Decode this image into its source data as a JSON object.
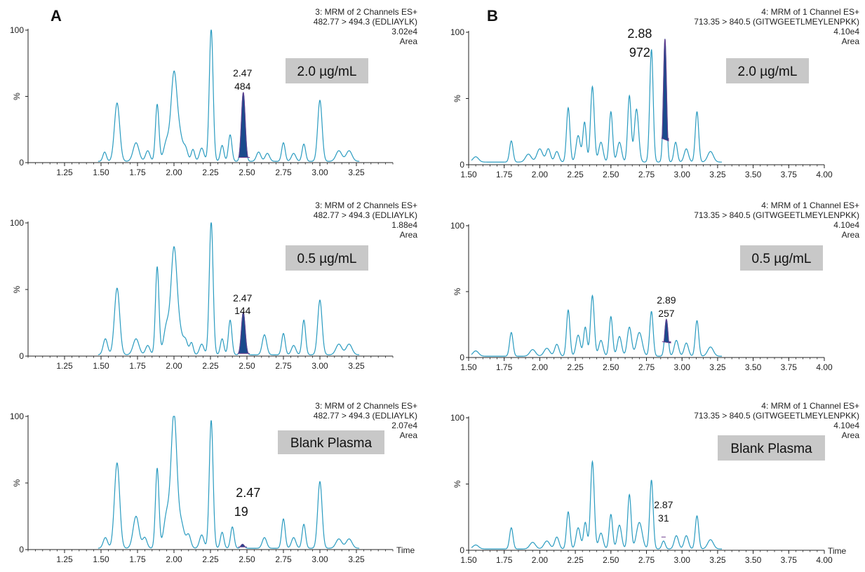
{
  "panel_letters": [
    "A",
    "B"
  ],
  "time_label": "Time",
  "chart_data": [
    {
      "type": "line",
      "panel": "A",
      "label": "2.0 µg/mL",
      "info": [
        "3: MRM of 2 Channels ES+",
        "482.77 > 494.3 (EDLIAYLK)",
        "3.02e4",
        "Area"
      ],
      "xlim": [
        1.0,
        3.5
      ],
      "xticks": [
        "1.25",
        "1.50",
        "1.75",
        "2.00",
        "2.25",
        "2.50",
        "2.75",
        "3.00",
        "3.25"
      ],
      "yticks": [
        "0",
        "%",
        "100"
      ],
      "ylim": [
        0,
        100
      ],
      "baseline": 1,
      "peaks": [
        [
          1.525,
          7,
          0.012
        ],
        [
          1.61,
          44,
          0.018
        ],
        [
          1.74,
          14,
          0.02
        ],
        [
          1.82,
          8,
          0.015
        ],
        [
          1.885,
          43,
          0.012
        ],
        [
          1.95,
          15,
          0.02
        ],
        [
          2.0,
          65,
          0.02
        ],
        [
          2.04,
          18,
          0.02
        ],
        [
          2.08,
          9,
          0.015
        ],
        [
          2.13,
          9,
          0.012
        ],
        [
          2.19,
          10,
          0.015
        ],
        [
          2.255,
          100,
          0.013
        ],
        [
          2.33,
          12,
          0.012
        ],
        [
          2.385,
          20,
          0.012
        ],
        [
          2.475,
          52,
          0.013
        ],
        [
          2.58,
          7,
          0.015
        ],
        [
          2.64,
          6,
          0.015
        ],
        [
          2.75,
          14,
          0.012
        ],
        [
          2.82,
          6,
          0.015
        ],
        [
          2.89,
          13,
          0.012
        ],
        [
          3.0,
          46,
          0.015
        ],
        [
          3.13,
          8,
          0.02
        ],
        [
          3.2,
          8,
          0.02
        ]
      ],
      "x_start": 1.48,
      "x_end": 3.27,
      "shaded": {
        "start": 2.44,
        "end": 2.52,
        "base_start": 4,
        "base_end": 4
      },
      "annotation": {
        "rt": "2.47",
        "area": "484",
        "x": 2.47
      },
      "show_time": false
    },
    {
      "type": "line",
      "panel": "A",
      "label": "0.5 µg/mL",
      "info": [
        "3: MRM of 2 Channels ES+",
        "482.77 > 494.3 (EDLIAYLK)",
        "1.88e4",
        "Area"
      ],
      "xlim": [
        1.0,
        3.5
      ],
      "xticks": [
        "1.25",
        "1.50",
        "1.75",
        "2.00",
        "2.25",
        "2.50",
        "2.75",
        "3.00",
        "3.25"
      ],
      "yticks": [
        "0",
        "%",
        "100"
      ],
      "ylim": [
        0,
        100
      ],
      "baseline": 1,
      "peaks": [
        [
          1.53,
          12,
          0.015
        ],
        [
          1.61,
          50,
          0.018
        ],
        [
          1.74,
          12,
          0.02
        ],
        [
          1.82,
          7,
          0.015
        ],
        [
          1.885,
          66,
          0.012
        ],
        [
          1.95,
          22,
          0.02
        ],
        [
          2.0,
          78,
          0.02
        ],
        [
          2.04,
          16,
          0.02
        ],
        [
          2.08,
          10,
          0.015
        ],
        [
          2.12,
          9,
          0.012
        ],
        [
          2.19,
          8,
          0.015
        ],
        [
          2.255,
          100,
          0.013
        ],
        [
          2.33,
          12,
          0.012
        ],
        [
          2.385,
          26,
          0.012
        ],
        [
          2.475,
          32,
          0.013
        ],
        [
          2.62,
          15,
          0.015
        ],
        [
          2.75,
          16,
          0.012
        ],
        [
          2.82,
          7,
          0.015
        ],
        [
          2.89,
          26,
          0.012
        ],
        [
          3.0,
          41,
          0.015
        ],
        [
          3.13,
          8,
          0.02
        ],
        [
          3.2,
          8,
          0.02
        ]
      ],
      "x_start": 1.48,
      "x_end": 3.27,
      "shaded": {
        "start": 2.44,
        "end": 2.52,
        "base_start": 2,
        "base_end": 2
      },
      "annotation": {
        "rt": "2.47",
        "area": "144",
        "x": 2.47
      },
      "show_time": false
    },
    {
      "type": "line",
      "panel": "A",
      "label": "Blank Plasma",
      "info": [
        "3: MRM of 2 Channels ES+",
        "482.77 > 494.3 (EDLIAYLK)",
        "2.07e4",
        "Area"
      ],
      "xlim": [
        1.0,
        3.5
      ],
      "xticks": [
        "1.25",
        "1.50",
        "1.75",
        "2.00",
        "2.25",
        "2.50",
        "2.75",
        "3.00",
        "3.25"
      ],
      "yticks": [
        "0",
        "%",
        "100"
      ],
      "ylim": [
        0,
        100
      ],
      "baseline": 1,
      "peaks": [
        [
          1.53,
          8,
          0.015
        ],
        [
          1.61,
          64,
          0.018
        ],
        [
          1.74,
          24,
          0.02
        ],
        [
          1.8,
          8,
          0.015
        ],
        [
          1.885,
          60,
          0.012
        ],
        [
          1.95,
          25,
          0.02
        ],
        [
          2.0,
          100,
          0.02
        ],
        [
          2.05,
          18,
          0.02
        ],
        [
          2.1,
          10,
          0.015
        ],
        [
          2.19,
          10,
          0.015
        ],
        [
          2.255,
          96,
          0.013
        ],
        [
          2.33,
          12,
          0.012
        ],
        [
          2.4,
          16,
          0.012
        ],
        [
          2.47,
          3,
          0.012
        ],
        [
          2.62,
          8,
          0.015
        ],
        [
          2.75,
          22,
          0.012
        ],
        [
          2.82,
          8,
          0.015
        ],
        [
          2.89,
          18,
          0.012
        ],
        [
          3.0,
          50,
          0.015
        ],
        [
          3.13,
          7,
          0.02
        ],
        [
          3.2,
          7,
          0.02
        ]
      ],
      "x_start": 1.48,
      "x_end": 3.27,
      "shaded": {
        "start": 2.44,
        "end": 2.5,
        "base_start": 2,
        "base_end": 2
      },
      "annotation": {
        "rt": "2.47",
        "area": "19",
        "x": 2.47
      },
      "show_time": true
    },
    {
      "type": "line",
      "panel": "B",
      "label": "2.0 µg/mL",
      "info": [
        "4: MRM of 1 Channel ES+",
        "713.35 > 840.5 (GITWGEETLMEYLENPKK)",
        "4.10e4",
        "Area"
      ],
      "xlim": [
        1.5,
        4.0
      ],
      "xticks": [
        "1.50",
        "1.75",
        "2.00",
        "2.25",
        "2.50",
        "2.75",
        "3.00",
        "3.25",
        "3.50",
        "3.75",
        "4.00"
      ],
      "yticks": [
        "0",
        "%",
        "100"
      ],
      "ylim": [
        0,
        100
      ],
      "baseline": 2,
      "peaks": [
        [
          1.55,
          4,
          0.02
        ],
        [
          1.8,
          16,
          0.012
        ],
        [
          1.92,
          6,
          0.02
        ],
        [
          2.0,
          10,
          0.02
        ],
        [
          2.06,
          10,
          0.015
        ],
        [
          2.12,
          8,
          0.015
        ],
        [
          2.2,
          41,
          0.012
        ],
        [
          2.27,
          20,
          0.015
        ],
        [
          2.315,
          30,
          0.012
        ],
        [
          2.37,
          57,
          0.013
        ],
        [
          2.43,
          15,
          0.015
        ],
        [
          2.5,
          38,
          0.012
        ],
        [
          2.56,
          15,
          0.015
        ],
        [
          2.63,
          50,
          0.012
        ],
        [
          2.68,
          40,
          0.015
        ],
        [
          2.785,
          85,
          0.012
        ],
        [
          2.88,
          93,
          0.011
        ],
        [
          2.955,
          15,
          0.012
        ],
        [
          3.03,
          10,
          0.015
        ],
        [
          3.105,
          38,
          0.012
        ],
        [
          3.2,
          8,
          0.02
        ]
      ],
      "x_start": 1.52,
      "x_end": 3.28,
      "shaded": {
        "start": 2.855,
        "end": 2.905,
        "base_start": 20,
        "base_end": 18
      },
      "annotation": {
        "rt": "2.88",
        "area": "972",
        "x": 2.88
      },
      "show_time": false
    },
    {
      "type": "line",
      "panel": "B",
      "label": "0.5 µg/mL",
      "info": [
        "4: MRM of 1 Channel ES+",
        "713.35 > 840.5 (GITWGEETLMEYLENPKK)",
        "4.10e4",
        "Area"
      ],
      "xlim": [
        1.5,
        4.0
      ],
      "xticks": [
        "1.50",
        "1.75",
        "2.00",
        "2.25",
        "2.50",
        "2.75",
        "3.00",
        "3.25",
        "3.50",
        "3.75",
        "4.00"
      ],
      "yticks": [
        "0",
        "%",
        "100"
      ],
      "ylim": [
        0,
        100
      ],
      "baseline": 1,
      "peaks": [
        [
          1.55,
          4,
          0.02
        ],
        [
          1.8,
          18,
          0.012
        ],
        [
          1.95,
          5,
          0.02
        ],
        [
          2.05,
          6,
          0.02
        ],
        [
          2.12,
          9,
          0.015
        ],
        [
          2.2,
          35,
          0.012
        ],
        [
          2.27,
          16,
          0.015
        ],
        [
          2.32,
          22,
          0.012
        ],
        [
          2.37,
          46,
          0.013
        ],
        [
          2.43,
          12,
          0.015
        ],
        [
          2.5,
          30,
          0.012
        ],
        [
          2.56,
          15,
          0.015
        ],
        [
          2.63,
          22,
          0.015
        ],
        [
          2.7,
          18,
          0.02
        ],
        [
          2.785,
          34,
          0.012
        ],
        [
          2.89,
          28,
          0.012
        ],
        [
          2.96,
          12,
          0.015
        ],
        [
          3.03,
          10,
          0.015
        ],
        [
          3.105,
          27,
          0.012
        ],
        [
          3.2,
          7,
          0.02
        ]
      ],
      "x_start": 1.52,
      "x_end": 3.28,
      "shaded": {
        "start": 2.86,
        "end": 2.92,
        "base_start": 12,
        "base_end": 11
      },
      "annotation": {
        "rt": "2.89",
        "area": "257",
        "x": 2.89
      },
      "show_time": false
    },
    {
      "type": "line",
      "panel": "B",
      "label": "Blank Plasma",
      "info": [
        "4: MRM of 1 Channel ES+",
        "713.35 > 840.5 (GITWGEETLMEYLENPKK)",
        "4.10e4",
        "Area"
      ],
      "xlim": [
        1.5,
        4.0
      ],
      "xticks": [
        "1.50",
        "1.75",
        "2.00",
        "2.25",
        "2.50",
        "2.75",
        "3.00",
        "3.25",
        "3.50",
        "3.75",
        "4.00"
      ],
      "yticks": [
        "0",
        "%",
        "100"
      ],
      "ylim": [
        0,
        100
      ],
      "baseline": 1,
      "peaks": [
        [
          1.55,
          3,
          0.02
        ],
        [
          1.8,
          16,
          0.012
        ],
        [
          1.95,
          5,
          0.02
        ],
        [
          2.05,
          6,
          0.02
        ],
        [
          2.12,
          9,
          0.015
        ],
        [
          2.2,
          28,
          0.012
        ],
        [
          2.27,
          16,
          0.015
        ],
        [
          2.32,
          20,
          0.012
        ],
        [
          2.37,
          66,
          0.013
        ],
        [
          2.43,
          12,
          0.015
        ],
        [
          2.5,
          26,
          0.012
        ],
        [
          2.56,
          18,
          0.015
        ],
        [
          2.63,
          41,
          0.012
        ],
        [
          2.7,
          20,
          0.02
        ],
        [
          2.785,
          52,
          0.012
        ],
        [
          2.87,
          6,
          0.012
        ],
        [
          2.96,
          10,
          0.015
        ],
        [
          3.03,
          10,
          0.015
        ],
        [
          3.105,
          25,
          0.012
        ],
        [
          3.2,
          7,
          0.02
        ]
      ],
      "x_start": 1.52,
      "x_end": 3.28,
      "shaded": {
        "start": 2.855,
        "end": 2.885,
        "base_start": 10,
        "base_end": 10
      },
      "annotation": {
        "rt": "2.87",
        "area": "31",
        "x": 2.87
      },
      "show_time": true
    }
  ],
  "colors": {
    "trace": "#2a9bc0",
    "fill": "#1a4a8c",
    "fill_edge": "#6b3a8c",
    "box": "#c8c8c8",
    "axis": "#222222"
  }
}
